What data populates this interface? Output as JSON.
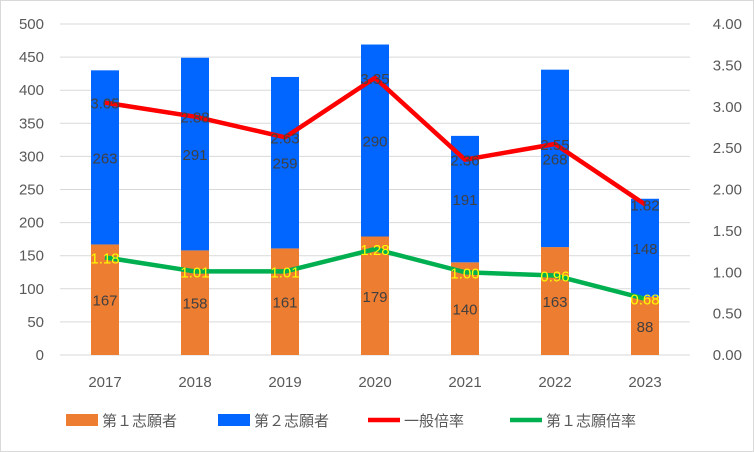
{
  "chart_data": {
    "type": "bar+line",
    "categories": [
      "2017",
      "2018",
      "2019",
      "2020",
      "2021",
      "2022",
      "2023"
    ],
    "series": [
      {
        "name": "第１志願者",
        "type": "stacked-bar",
        "axis": "left",
        "color": "#ED7D31",
        "values": [
          167,
          158,
          161,
          179,
          140,
          163,
          88
        ]
      },
      {
        "name": "第２志願者",
        "type": "stacked-bar",
        "axis": "left",
        "color": "#0066FF",
        "values": [
          263,
          291,
          259,
          290,
          191,
          268,
          148
        ]
      },
      {
        "name": "一般倍率",
        "type": "line",
        "axis": "right",
        "color": "#FF0000",
        "label_color": "#404040",
        "values": [
          3.05,
          2.88,
          2.63,
          3.35,
          2.36,
          2.55,
          1.82
        ]
      },
      {
        "name": "第１志願倍率",
        "type": "line",
        "axis": "right",
        "color": "#00B050",
        "label_color": "#FFFF00",
        "values": [
          1.18,
          1.01,
          1.01,
          1.28,
          1.0,
          0.96,
          0.68
        ]
      }
    ],
    "ylim": [
      0,
      500
    ],
    "y_ticks": [
      "0",
      "50",
      "100",
      "150",
      "200",
      "250",
      "300",
      "350",
      "400",
      "450",
      "500"
    ],
    "y2lim": [
      0,
      4
    ],
    "y2_ticks": [
      "0.00",
      "0.50",
      "1.00",
      "1.50",
      "2.00",
      "2.50",
      "3.00",
      "3.50",
      "4.00"
    ],
    "grid": true,
    "legend": "bottom"
  }
}
